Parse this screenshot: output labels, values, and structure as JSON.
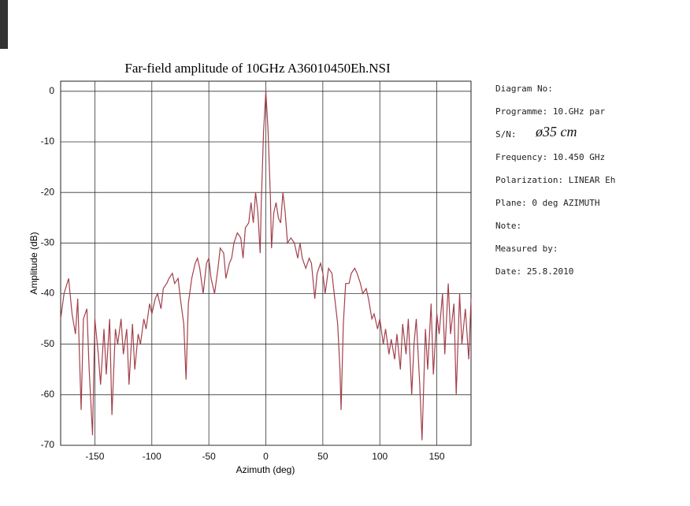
{
  "chart_data": {
    "type": "line",
    "title": "Far-field amplitude of 10GHz A36010450Eh.NSI",
    "x_label": "Azimuth (deg)",
    "y_label": "Amplitude (dB)",
    "color": "#a3404c",
    "grid": true,
    "xlim": [
      -180,
      180
    ],
    "xticks": [
      -150,
      -100,
      -50,
      0,
      50,
      100,
      150
    ],
    "ylim": [
      -70,
      2
    ],
    "yticks": [
      0,
      -10,
      -20,
      -30,
      -40,
      -50,
      -60,
      -70
    ],
    "x": [
      -180,
      -177,
      -173,
      -170,
      -167,
      -165,
      -162,
      -160,
      -157,
      -155,
      -152,
      -150,
      -147,
      -145,
      -142,
      -140,
      -137,
      -135,
      -132,
      -130,
      -127,
      -125,
      -122,
      -120,
      -117,
      -115,
      -112,
      -110,
      -107,
      -105,
      -102,
      -100,
      -97,
      -95,
      -92,
      -90,
      -87,
      -85,
      -82,
      -80,
      -77,
      -75,
      -72,
      -70,
      -68,
      -65,
      -62,
      -60,
      -58,
      -55,
      -52,
      -50,
      -48,
      -45,
      -42,
      -40,
      -37,
      -35,
      -32,
      -30,
      -28,
      -25,
      -22,
      -20,
      -18,
      -15,
      -13,
      -11,
      -9,
      -7,
      -5,
      -4,
      -2,
      0,
      2,
      4,
      5,
      7,
      9,
      11,
      13,
      15,
      17,
      19,
      22,
      25,
      28,
      30,
      32,
      35,
      38,
      40,
      43,
      45,
      48,
      50,
      52,
      55,
      58,
      60,
      63,
      65,
      66,
      68,
      70,
      73,
      75,
      78,
      80,
      83,
      85,
      88,
      90,
      93,
      95,
      98,
      100,
      103,
      105,
      108,
      110,
      113,
      115,
      118,
      120,
      123,
      125,
      128,
      130,
      132,
      135,
      137,
      140,
      142,
      145,
      147,
      150,
      152,
      155,
      157,
      160,
      162,
      165,
      167,
      170,
      172,
      175,
      178,
      180
    ],
    "values": [
      -45,
      -40,
      -37,
      -44,
      -48,
      -41,
      -63,
      -45,
      -43,
      -55,
      -68,
      -45,
      -52,
      -58,
      -47,
      -56,
      -45,
      -64,
      -47,
      -50,
      -45,
      -52,
      -47,
      -58,
      -46,
      -55,
      -48,
      -50,
      -45,
      -47,
      -42,
      -44,
      -41,
      -40,
      -43,
      -39,
      -38,
      -37,
      -36,
      -38,
      -37,
      -41,
      -46,
      -57,
      -42,
      -37,
      -34,
      -33,
      -35,
      -40,
      -34,
      -33,
      -37,
      -40,
      -35,
      -31,
      -32,
      -37,
      -34,
      -33,
      -30,
      -28,
      -29,
      -33,
      -27,
      -26,
      -22,
      -26,
      -20,
      -24,
      -32,
      -22,
      -8,
      0,
      -8,
      -21,
      -31,
      -24,
      -22,
      -25,
      -26,
      -20,
      -24,
      -30,
      -29,
      -30,
      -33,
      -30,
      -33,
      -35,
      -33,
      -34,
      -41,
      -36,
      -34,
      -36,
      -40,
      -35,
      -36,
      -40,
      -46,
      -55,
      -63,
      -46,
      -38,
      -38,
      -36,
      -35,
      -36,
      -38,
      -40,
      -39,
      -41,
      -45,
      -44,
      -47,
      -45,
      -50,
      -47,
      -52,
      -49,
      -53,
      -48,
      -55,
      -46,
      -52,
      -45,
      -60,
      -50,
      -45,
      -58,
      -69,
      -47,
      -55,
      -42,
      -56,
      -44,
      -48,
      -40,
      -52,
      -38,
      -48,
      -42,
      -60,
      -40,
      -50,
      -43,
      -53,
      -41
    ]
  },
  "info": {
    "rows": [
      {
        "label": "Diagram No:"
      },
      {
        "label": "Programme: 10.GHz par"
      },
      {
        "label": "S/N:",
        "value": "ø35 cm"
      },
      {
        "label": "Frequency:  10.450 GHz"
      },
      {
        "label": "Polarization: LINEAR Eh"
      },
      {
        "label": "Plane:  0 deg AZIMUTH"
      },
      {
        "label": "Note:"
      },
      {
        "label": "Measured by:"
      },
      {
        "label": "Date:  25.8.2010"
      }
    ]
  }
}
